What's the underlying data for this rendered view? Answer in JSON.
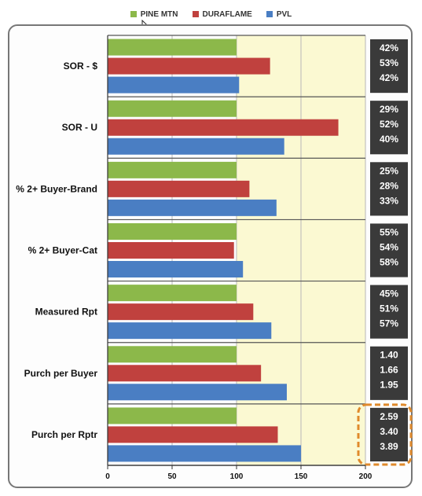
{
  "chart_data": {
    "type": "bar",
    "orientation": "horizontal",
    "categories": [
      "SOR - $",
      "SOR - U",
      "% 2+ Buyer-Brand",
      "% 2+ Buyer-Cat",
      "Measured Rpt",
      "Purch per Buyer",
      "Purch per Rptr"
    ],
    "series": [
      {
        "name": "PINE MTN",
        "color": "#8cb84a",
        "values": [
          100,
          100,
          100,
          100,
          100,
          100,
          100
        ]
      },
      {
        "name": "DURAFLAME",
        "color": "#c0413e",
        "values": [
          126,
          179,
          110,
          98,
          113,
          119,
          132
        ]
      },
      {
        "name": "PVL",
        "color": "#4a7ec3",
        "values": [
          102,
          137,
          131,
          105,
          127,
          139,
          150
        ]
      }
    ],
    "value_labels": [
      [
        "42%",
        "53%",
        "42%"
      ],
      [
        "29%",
        "52%",
        "40%"
      ],
      [
        "25%",
        "28%",
        "33%"
      ],
      [
        "55%",
        "54%",
        "58%"
      ],
      [
        "45%",
        "51%",
        "57%"
      ],
      [
        "1.40",
        "1.66",
        "1.95"
      ],
      [
        "2.59",
        "3.40",
        "3.89"
      ]
    ],
    "highlighted_category": "Purch per Rptr",
    "xlim": [
      0,
      200
    ],
    "xticks": [
      0,
      50,
      100,
      150,
      200
    ],
    "index_baseline": 100,
    "legend_position": "top-center",
    "title": "",
    "xlabel": "",
    "ylabel": ""
  },
  "colors": {
    "above_index_background": "#fbf9d2",
    "value_box": "#3a3a3a",
    "highlight_outline": "#e08a2c",
    "frame_border": "#777777"
  }
}
